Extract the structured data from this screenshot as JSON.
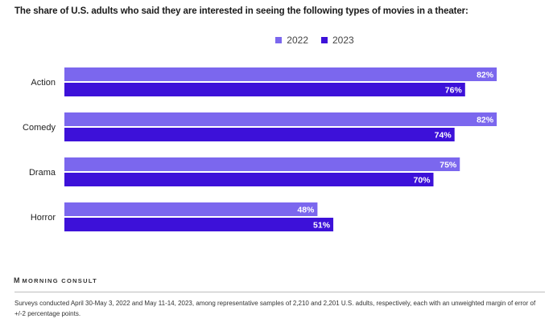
{
  "title": "The share of U.S. adults who said they are interested in seeing the following types of movies in a theater:",
  "colors": {
    "2022": "#7b67ee",
    "2023": "#3d11d9"
  },
  "brand": {
    "mark": "M",
    "name": "MORNING CONSULT"
  },
  "note": "Surveys conducted April 30-May 3, 2022 and May 11-14, 2023, among representative samples of 2,210 and 2,201 U.S. adults, respectively, each with an unweighted margin of error of +/-2 percentage points.",
  "chart_data": {
    "type": "bar",
    "orientation": "horizontal",
    "title": "The share of U.S. adults who said they are interested in seeing the following types of movies in a theater:",
    "categories": [
      "Action",
      "Comedy",
      "Drama",
      "Horror"
    ],
    "series": [
      {
        "name": "2022",
        "values": [
          82,
          82,
          75,
          48
        ],
        "color": "#7b67ee"
      },
      {
        "name": "2023",
        "values": [
          76,
          74,
          70,
          51
        ],
        "color": "#3d11d9"
      }
    ],
    "value_suffix": "%",
    "xlim": [
      0,
      100
    ],
    "grid": false,
    "legend": "top-center"
  }
}
